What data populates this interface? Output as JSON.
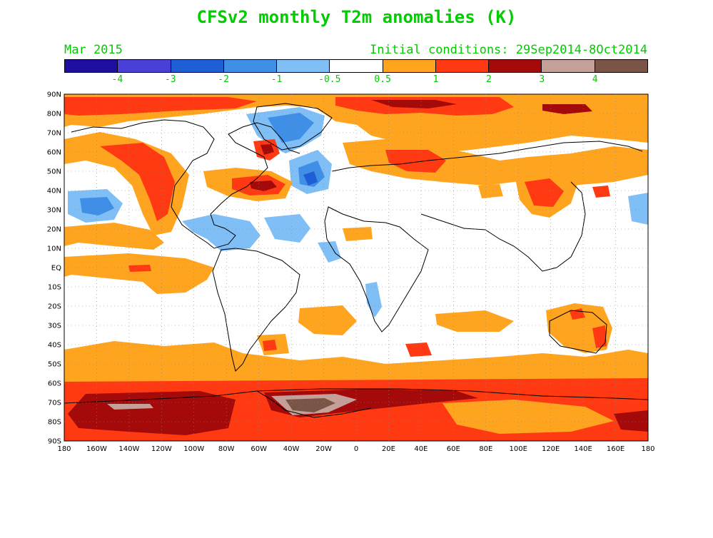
{
  "title": "CFSv2 monthly T2m anomalies (K)",
  "subtitle_left": "Mar 2015",
  "subtitle_right": "Initial conditions: 29Sep2014-8Oct2014",
  "colorbar": {
    "colors": [
      "#1f0f9e",
      "#4a3fd6",
      "#1f5fd6",
      "#3f8fe6",
      "#7fbff6",
      "#ffffff",
      "#ffa41f",
      "#ff3a12",
      "#a40a0a",
      "#c4a098",
      "#7a5547"
    ],
    "labels": [
      "-4",
      "-3",
      "-2",
      "-1",
      "-0.5",
      "0.5",
      "1",
      "2",
      "3",
      "4"
    ]
  },
  "map": {
    "lat_labels": [
      "90N",
      "80N",
      "70N",
      "60N",
      "50N",
      "40N",
      "30N",
      "20N",
      "10N",
      "EQ",
      "10S",
      "20S",
      "30S",
      "40S",
      "50S",
      "60S",
      "70S",
      "80S",
      "90S"
    ],
    "lon_labels": [
      "180",
      "160W",
      "140W",
      "120W",
      "100W",
      "80W",
      "60W",
      "40W",
      "20W",
      "0",
      "20E",
      "40E",
      "60E",
      "80E",
      "100E",
      "120E",
      "140E",
      "160E",
      "180"
    ]
  }
}
